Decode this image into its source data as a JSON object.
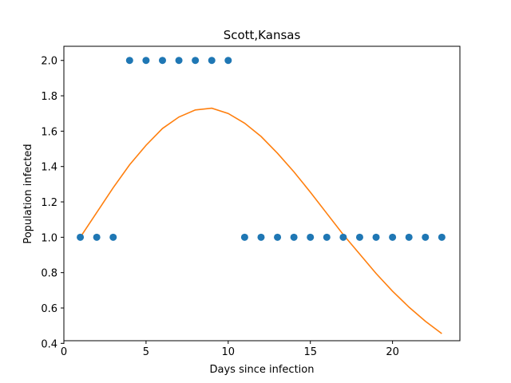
{
  "chart_data": {
    "type": "scatter",
    "title": "Scott,Kansas",
    "xlabel": "Days since infection",
    "ylabel": "Population infected",
    "xlim": [
      0,
      24.1
    ],
    "ylim": [
      0.415,
      2.08
    ],
    "xticks": [
      0,
      5,
      10,
      15,
      20
    ],
    "yticks": [
      0.4,
      0.6,
      0.8,
      1.0,
      1.2,
      1.4,
      1.6,
      1.8,
      2.0
    ],
    "grid": false,
    "series": [
      {
        "kind": "scatter",
        "color": "#1f77b4",
        "x": [
          1,
          2,
          3,
          4,
          5,
          6,
          7,
          8,
          9,
          10,
          11,
          12,
          13,
          14,
          15,
          16,
          17,
          18,
          19,
          20,
          21,
          22,
          23
        ],
        "y": [
          1,
          1,
          1,
          2,
          2,
          2,
          2,
          2,
          2,
          2,
          1,
          1,
          1,
          1,
          1,
          1,
          1,
          1,
          1,
          1,
          1,
          1,
          1
        ]
      },
      {
        "kind": "line",
        "color": "#ff7f0e",
        "x": [
          1,
          2,
          3,
          4,
          5,
          6,
          7,
          8,
          9,
          10,
          11,
          12,
          13,
          14,
          15,
          16,
          17,
          18,
          19,
          20,
          21,
          22,
          23
        ],
        "y": [
          1.0,
          1.14,
          1.28,
          1.41,
          1.52,
          1.615,
          1.68,
          1.72,
          1.73,
          1.7,
          1.645,
          1.57,
          1.475,
          1.37,
          1.255,
          1.135,
          1.015,
          0.905,
          0.795,
          0.695,
          0.605,
          0.525,
          0.455
        ]
      }
    ]
  }
}
